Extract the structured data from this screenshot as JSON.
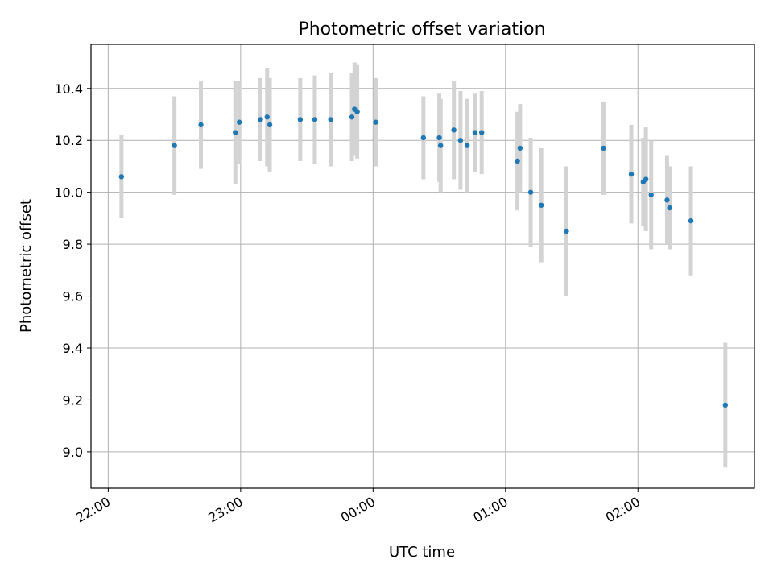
{
  "chart_data": {
    "type": "scatter",
    "title": "Photometric offset variation",
    "xlabel": "UTC time",
    "ylabel": "Photometric offset",
    "x_unit": "hours",
    "x_tick_values": [
      22.0,
      23.0,
      24.0,
      25.0,
      26.0
    ],
    "x_tick_labels": [
      "22:00",
      "23:00",
      "00:00",
      "01:00",
      "02:00"
    ],
    "xlim": [
      21.87,
      26.88
    ],
    "y_ticks": [
      9.0,
      9.2,
      9.4,
      9.6,
      9.8,
      10.0,
      10.2,
      10.4
    ],
    "y_tick_labels": [
      "9.0",
      "9.2",
      "9.4",
      "9.6",
      "9.8",
      "10.0",
      "10.2",
      "10.4"
    ],
    "ylim": [
      8.86,
      10.57
    ],
    "grid": true,
    "colors": {
      "marker": "#1f77b4",
      "errorbar": "#d3d3d3",
      "grid": "#b0b0b0"
    },
    "series": [
      {
        "points": [
          {
            "x": 22.1,
            "y": 10.06,
            "err": 0.16
          },
          {
            "x": 22.5,
            "y": 10.18,
            "err": 0.19
          },
          {
            "x": 22.7,
            "y": 10.26,
            "err": 0.17
          },
          {
            "x": 22.96,
            "y": 10.23,
            "err": 0.2
          },
          {
            "x": 22.99,
            "y": 10.27,
            "err": 0.16
          },
          {
            "x": 23.15,
            "y": 10.28,
            "err": 0.16
          },
          {
            "x": 23.2,
            "y": 10.29,
            "err": 0.19
          },
          {
            "x": 23.22,
            "y": 10.26,
            "err": 0.18
          },
          {
            "x": 23.45,
            "y": 10.28,
            "err": 0.16
          },
          {
            "x": 23.56,
            "y": 10.28,
            "err": 0.17
          },
          {
            "x": 23.68,
            "y": 10.28,
            "err": 0.18
          },
          {
            "x": 23.84,
            "y": 10.29,
            "err": 0.17
          },
          {
            "x": 23.86,
            "y": 10.32,
            "err": 0.18
          },
          {
            "x": 23.88,
            "y": 10.31,
            "err": 0.18
          },
          {
            "x": 24.02,
            "y": 10.27,
            "err": 0.17
          },
          {
            "x": 24.38,
            "y": 10.21,
            "err": 0.16
          },
          {
            "x": 24.5,
            "y": 10.21,
            "err": 0.17
          },
          {
            "x": 24.51,
            "y": 10.18,
            "err": 0.18
          },
          {
            "x": 24.61,
            "y": 10.24,
            "err": 0.19
          },
          {
            "x": 24.66,
            "y": 10.2,
            "err": 0.19
          },
          {
            "x": 24.71,
            "y": 10.18,
            "err": 0.18
          },
          {
            "x": 24.77,
            "y": 10.23,
            "err": 0.15
          },
          {
            "x": 24.82,
            "y": 10.23,
            "err": 0.16
          },
          {
            "x": 25.09,
            "y": 10.12,
            "err": 0.19
          },
          {
            "x": 25.11,
            "y": 10.17,
            "err": 0.17
          },
          {
            "x": 25.19,
            "y": 10.0,
            "err": 0.21
          },
          {
            "x": 25.27,
            "y": 9.95,
            "err": 0.22
          },
          {
            "x": 25.46,
            "y": 9.85,
            "err": 0.25
          },
          {
            "x": 25.74,
            "y": 10.17,
            "err": 0.18
          },
          {
            "x": 25.95,
            "y": 10.07,
            "err": 0.19
          },
          {
            "x": 26.04,
            "y": 10.04,
            "err": 0.17
          },
          {
            "x": 26.06,
            "y": 10.05,
            "err": 0.2
          },
          {
            "x": 26.1,
            "y": 9.99,
            "err": 0.21
          },
          {
            "x": 26.22,
            "y": 9.97,
            "err": 0.17
          },
          {
            "x": 26.24,
            "y": 9.94,
            "err": 0.16
          },
          {
            "x": 26.4,
            "y": 9.89,
            "err": 0.21
          },
          {
            "x": 26.66,
            "y": 9.18,
            "err": 0.24
          }
        ]
      }
    ]
  }
}
